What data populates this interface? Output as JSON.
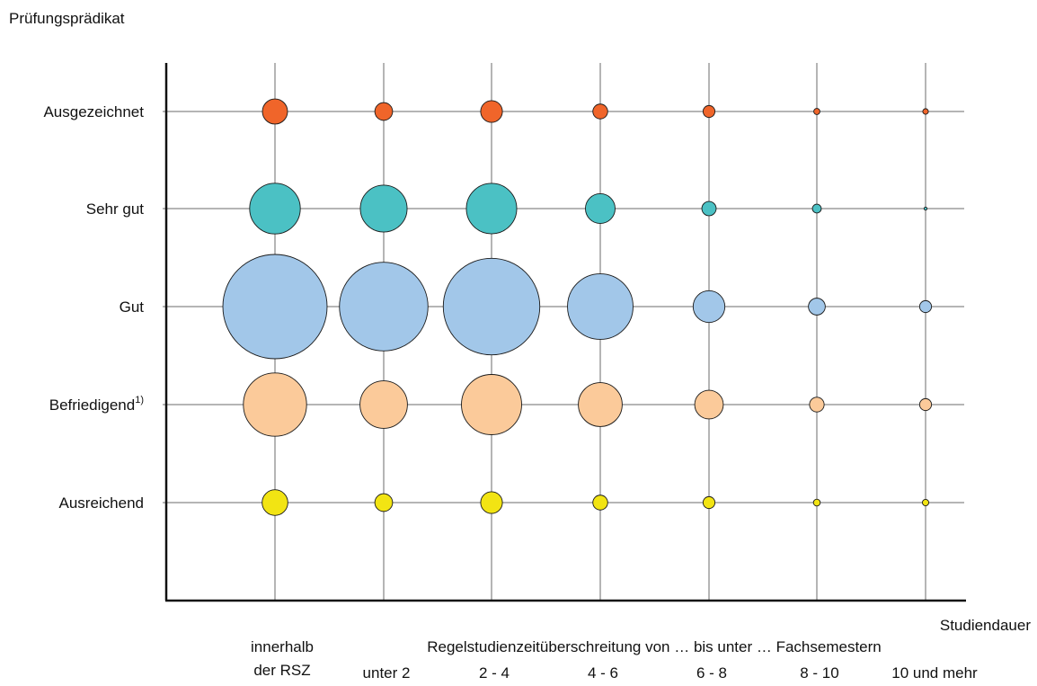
{
  "chart_data": {
    "type": "bubble",
    "ylabel": "Prüfungsprädikat",
    "xlabel": "Studiendauer",
    "x_group_label": "Regelstudienzeitüberschreitung von … bis unter … Fachsemestern",
    "categories": [
      {
        "line1": "innerhalb",
        "line2": "der RSZ"
      },
      {
        "line1": "",
        "line2": "unter 2"
      },
      {
        "line1": "",
        "line2": "2 - 4"
      },
      {
        "line1": "",
        "line2": "4 - 6"
      },
      {
        "line1": "",
        "line2": "6 - 8"
      },
      {
        "line1": "",
        "line2": "8 - 10"
      },
      {
        "line1": "",
        "line2": "10 und mehr"
      }
    ],
    "grades": [
      {
        "label": "Ausgezeichnet",
        "sup": "",
        "color": "#F0652A"
      },
      {
        "label": "Sehr gut",
        "sup": "",
        "color": "#4BC1C4"
      },
      {
        "label": "Gut",
        "sup": "",
        "color": "#A2C7E9"
      },
      {
        "label": "Befriedigend",
        "sup": "1)",
        "color": "#FBCA9A"
      },
      {
        "label": "Ausreichend",
        "sup": "",
        "color": "#F2E413"
      }
    ],
    "bubble_values": [
      [
        200,
        100,
        150,
        70,
        45,
        12,
        10
      ],
      [
        815,
        695,
        805,
        280,
        65,
        25,
        3
      ],
      [
        3450,
        2490,
        2960,
        1365,
        320,
        90,
        45
      ],
      [
        1270,
        715,
        1150,
        610,
        260,
        68,
        45
      ],
      [
        210,
        100,
        150,
        70,
        45,
        15,
        13
      ]
    ],
    "grid": true
  }
}
